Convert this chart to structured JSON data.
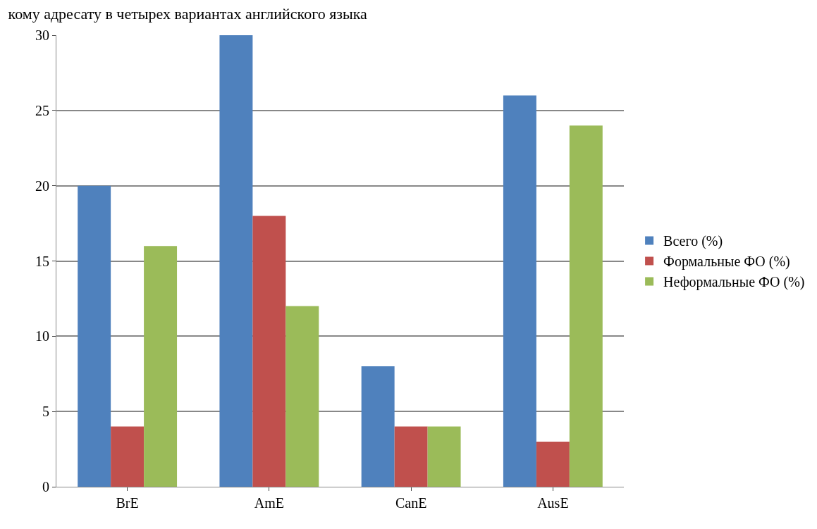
{
  "chart_data": {
    "type": "bar",
    "title": "кому адресату в четырех вариантах английского языка",
    "categories": [
      "BrE",
      "AmE",
      "CanE",
      "AusE"
    ],
    "series": [
      {
        "name": "Всего (%)",
        "color": "#4f81bd",
        "values": [
          20,
          30,
          8,
          26
        ]
      },
      {
        "name": "Формальные ФО (%)",
        "color": "#c0504d",
        "values": [
          4,
          18,
          4,
          3
        ]
      },
      {
        "name": "Неформальные ФО (%)",
        "color": "#9bbb59",
        "values": [
          16,
          12,
          4,
          24
        ]
      }
    ],
    "ylim": [
      0,
      30
    ],
    "yticks": [
      0,
      5,
      10,
      15,
      20,
      25,
      30
    ],
    "grid": "y",
    "legend": "right"
  }
}
